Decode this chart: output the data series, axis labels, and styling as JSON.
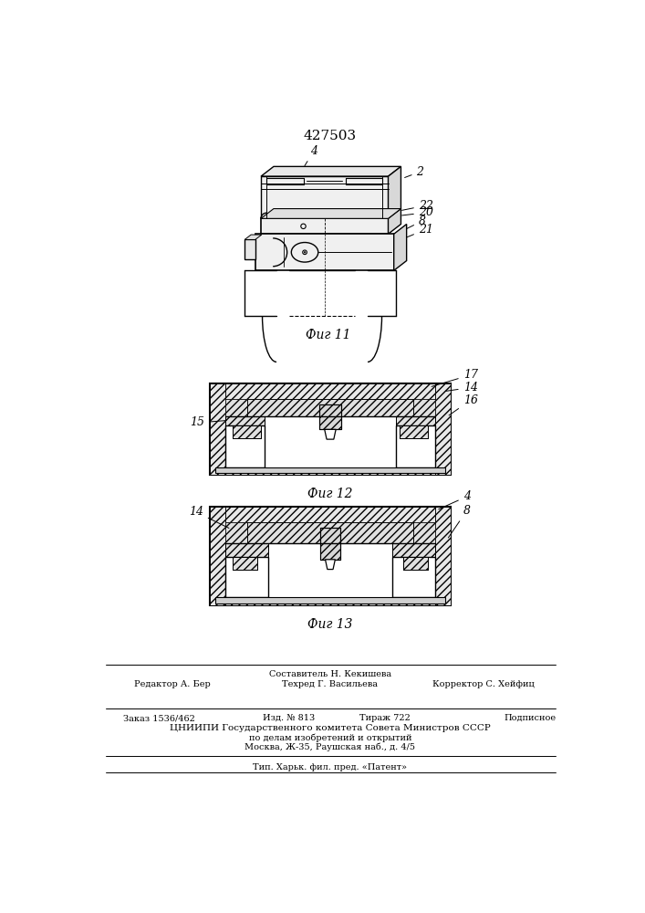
{
  "patent_number": "427503",
  "bg": "#ffffff",
  "lc": "#000000",
  "fig_width": 7.07,
  "fig_height": 10.0,
  "fig11_caption": "Фиг 11",
  "fig12_caption": "Фиг 12",
  "fig13_caption": "Фиг 13"
}
